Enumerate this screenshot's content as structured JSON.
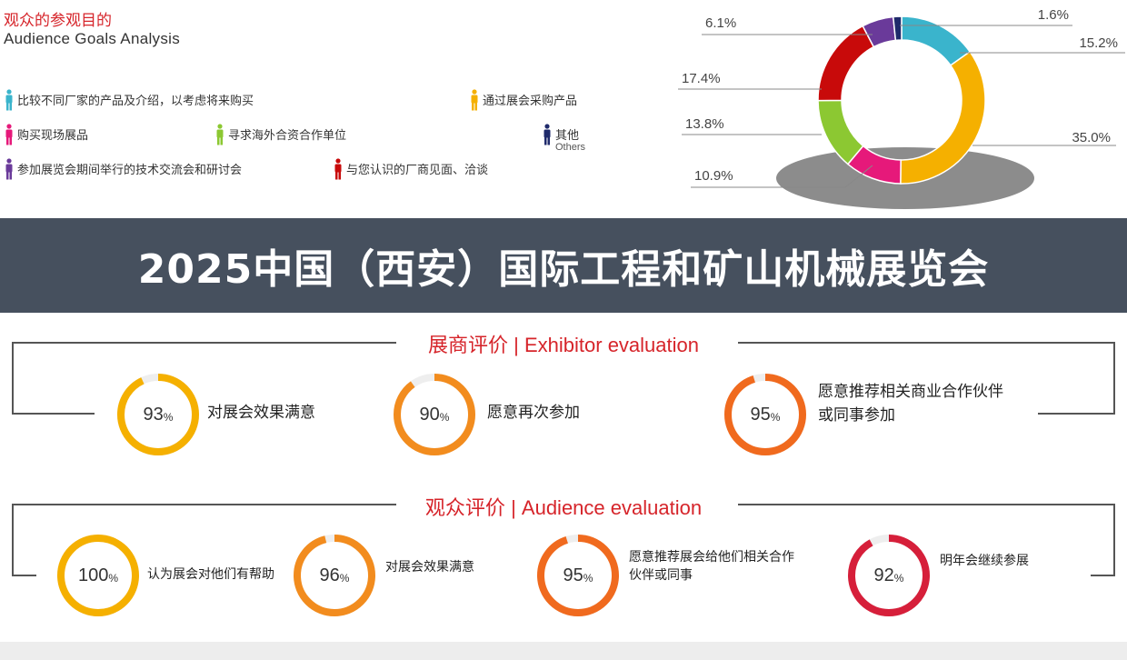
{
  "goals": {
    "title_cn": "观众的参观目的",
    "title_en": "Audience Goals Analysis"
  },
  "legend": [
    {
      "label": "比较不同厂家的产品及介绍，以考虑将来购买",
      "sub": "",
      "color": "#3ab4cc"
    },
    {
      "label": "通过展会采购产品",
      "sub": "",
      "color": "#f5b000"
    },
    {
      "label": "购买现场展品",
      "sub": "",
      "color": "#e6197a"
    },
    {
      "label": "寻求海外合资合作单位",
      "sub": "",
      "color": "#8cc832"
    },
    {
      "label": "其他",
      "sub": "Others",
      "color": "#1f2a6b"
    },
    {
      "label": "参加展览会期间举行的技术交流会和研讨会",
      "sub": "",
      "color": "#6a3a9a"
    },
    {
      "label": "与您认识的厂商见面、洽谈",
      "sub": "",
      "color": "#c80a0a"
    }
  ],
  "chart_data": {
    "type": "pie",
    "hole": true,
    "slices": [
      {
        "label": "比较不同厂家的产品及介绍，以考虑将来购买",
        "value": 15.2,
        "display": "15.2%",
        "color": "#3ab4cc"
      },
      {
        "label": "通过展会采购产品",
        "value": 35.0,
        "display": "35.0%",
        "color": "#f5b000"
      },
      {
        "label": "购买现场展品",
        "value": 10.9,
        "display": "10.9%",
        "color": "#e6197a"
      },
      {
        "label": "寻求海外合资合作单位",
        "value": 13.8,
        "display": "13.8%",
        "color": "#8cc832"
      },
      {
        "label": "与您认识的厂商见面、洽谈",
        "value": 17.4,
        "display": "17.4%",
        "color": "#c80a0a"
      },
      {
        "label": "参加展览会期间举行的技术交流会和研讨会",
        "value": 6.1,
        "display": "6.1%",
        "color": "#6a3a9a"
      },
      {
        "label": "其他",
        "value": 1.6,
        "display": "1.6%",
        "color": "#1f2a6b"
      }
    ]
  },
  "banner": {
    "title": "2025中国（西安）国际工程和矿山机械展览会"
  },
  "exhibitor": {
    "title_cn": "展商评价",
    "separator": "|",
    "title_en": "Exhibitor evaluation",
    "items": [
      {
        "value": 93,
        "num": "93",
        "unit": "%",
        "label": "对展会效果满意",
        "color": "#f5b000"
      },
      {
        "value": 90,
        "num": "90",
        "unit": "%",
        "label": "愿意再次参加",
        "color": "#f28c1e"
      },
      {
        "value": 95,
        "num": "95",
        "unit": "%",
        "label": "愿意推荐相关商业合作伙伴或同事参加",
        "color": "#f06a1e"
      }
    ]
  },
  "audience": {
    "title_cn": "观众评价",
    "separator": "|",
    "title_en": "Audience evaluation",
    "items": [
      {
        "value": 100,
        "num": "100",
        "unit": "%",
        "label": "认为展会对他们有帮助",
        "color": "#f5b000"
      },
      {
        "value": 96,
        "num": "96",
        "unit": "%",
        "label": "对展会效果满意",
        "color": "#f28c1e"
      },
      {
        "value": 95,
        "num": "95",
        "unit": "%",
        "label": "愿意推荐展会给他们相关合作伙伴或同事",
        "color": "#f06a1e"
      },
      {
        "value": 92,
        "num": "92",
        "unit": "%",
        "label": "明年会继续参展",
        "color": "#d61f3a"
      }
    ]
  }
}
